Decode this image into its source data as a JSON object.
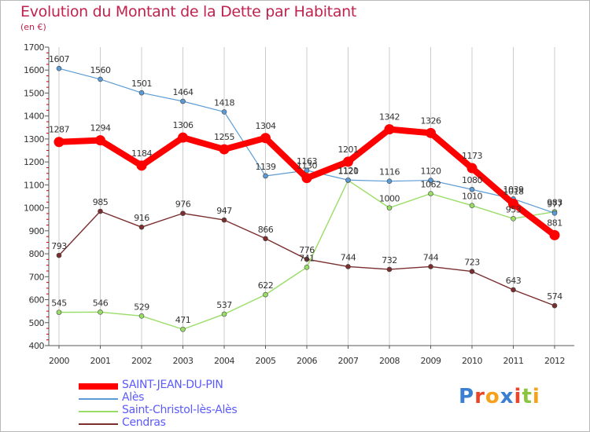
{
  "title": "Evolution du Montant de la Dette par Habitant",
  "unit": "(en €)",
  "logo": {
    "text": "Proxiti",
    "colors": [
      "#3a7fd0",
      "#e8462b",
      "#f5a11c",
      "#3a7fd0",
      "#e8462b",
      "#8bc53f",
      "#f5a11c"
    ]
  },
  "chart_data": {
    "type": "line",
    "title": "Evolution du Montant de la Dette par Habitant",
    "subtitle": "(en €)",
    "xlabel": "",
    "ylabel": "",
    "ylim": [
      400,
      1700
    ],
    "yticks": [
      400,
      500,
      600,
      700,
      800,
      900,
      1000,
      1100,
      1200,
      1300,
      1400,
      1500,
      1600,
      1700
    ],
    "grid": "vertical",
    "legend": "bottom-left",
    "x": [
      "2000",
      "2001",
      "2002",
      "2003",
      "2004",
      "2005",
      "2006",
      "2007",
      "2008",
      "2009",
      "2010",
      "2011",
      "2012"
    ],
    "series": [
      {
        "name": "SAINT-JEAN-DU-PIN",
        "color": "#ff0000",
        "values": [
          1287,
          1294,
          1184,
          1306,
          1255,
          1304,
          1130,
          1201,
          1342,
          1326,
          1173,
          1018,
          881
        ],
        "labels": [
          "1287",
          "1294",
          "1184",
          "1306",
          "1255",
          "1304",
          "1130",
          "1201",
          "1342",
          "1326",
          "1173",
          "1018",
          "881"
        ]
      },
      {
        "name": "Alès",
        "color": "#5b9bd5",
        "values": [
          1607,
          1560,
          1501,
          1464,
          1418,
          1139,
          1163,
          1121,
          1116,
          1120,
          1080,
          1039,
          977
        ],
        "labels": [
          "1607",
          "1560",
          "1501",
          "1464",
          "1418",
          "1139",
          "1163",
          "1121",
          "1116",
          "1120",
          "1080",
          "1039",
          "977"
        ]
      },
      {
        "name": "Saint-Christol-lès-Alès",
        "color": "#99dd66",
        "values": [
          545,
          546,
          529,
          471,
          537,
          622,
          741,
          1120,
          1000,
          1062,
          1010,
          953,
          983
        ],
        "labels": [
          "545",
          "546",
          "529",
          "471",
          "537",
          "622",
          "741",
          "1120",
          "1000",
          "1062",
          "1010",
          "953",
          "983"
        ]
      },
      {
        "name": "Cendras",
        "color": "#7a2e2e",
        "values": [
          793,
          985,
          916,
          976,
          947,
          866,
          776,
          744,
          732,
          744,
          723,
          643,
          574
        ],
        "labels": [
          "793",
          "985",
          "916",
          "976",
          "947",
          "866",
          "776",
          "744",
          "732",
          "744",
          "723",
          "643",
          "574"
        ]
      }
    ]
  }
}
